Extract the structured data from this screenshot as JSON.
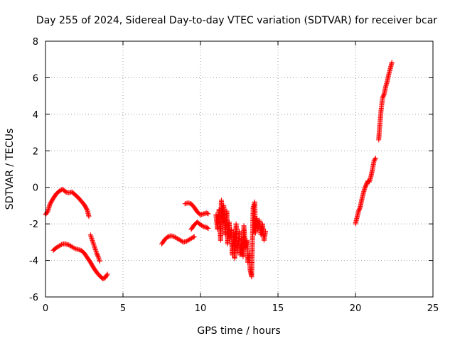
{
  "chart_data": {
    "type": "scatter",
    "title": "Day 255 of 2024, Sidereal Day-to-day VTEC variation (SDTVAR) for receiver bcar",
    "xlabel": "GPS time / hours",
    "ylabel": "SDTVAR / TECUs",
    "xlim": [
      0,
      25
    ],
    "ylim": [
      -6,
      8
    ],
    "xticks": [
      0,
      5,
      10,
      15,
      20,
      25
    ],
    "yticks": [
      -6,
      -4,
      -2,
      0,
      2,
      4,
      6,
      8
    ],
    "xtick_labels": [
      "0",
      "5",
      "10",
      "15",
      "20",
      "25"
    ],
    "ytick_labels": [
      "-6",
      "-4",
      "-2",
      "0",
      "2",
      "4",
      "6",
      "8"
    ],
    "grid": true,
    "legend": "none",
    "marker": "+",
    "color": "#ff0000",
    "series": [
      {
        "name": "track-1",
        "points": [
          [
            0.0,
            -1.5
          ],
          [
            0.15,
            -1.3
          ],
          [
            0.3,
            -0.9
          ],
          [
            0.5,
            -0.6
          ],
          [
            0.7,
            -0.35
          ],
          [
            0.9,
            -0.2
          ],
          [
            1.1,
            -0.1
          ],
          [
            1.3,
            -0.25
          ],
          [
            1.5,
            -0.3
          ],
          [
            1.7,
            -0.25
          ],
          [
            1.9,
            -0.4
          ],
          [
            2.1,
            -0.55
          ],
          [
            2.3,
            -0.75
          ],
          [
            2.5,
            -0.95
          ],
          [
            2.7,
            -1.25
          ],
          [
            2.8,
            -1.6
          ]
        ]
      },
      {
        "name": "track-2",
        "points": [
          [
            0.5,
            -3.45
          ],
          [
            0.7,
            -3.3
          ],
          [
            0.9,
            -3.2
          ],
          [
            1.1,
            -3.1
          ],
          [
            1.3,
            -3.1
          ],
          [
            1.5,
            -3.15
          ],
          [
            1.7,
            -3.25
          ],
          [
            1.9,
            -3.35
          ],
          [
            2.1,
            -3.4
          ],
          [
            2.3,
            -3.45
          ],
          [
            2.5,
            -3.6
          ],
          [
            2.7,
            -3.85
          ],
          [
            2.9,
            -4.1
          ],
          [
            3.1,
            -4.4
          ],
          [
            3.3,
            -4.65
          ],
          [
            3.5,
            -4.85
          ],
          [
            3.7,
            -5.0
          ],
          [
            3.85,
            -4.95
          ],
          [
            4.0,
            -4.75
          ]
        ]
      },
      {
        "name": "track-3",
        "points": [
          [
            2.9,
            -2.6
          ],
          [
            3.0,
            -2.85
          ],
          [
            3.1,
            -3.1
          ],
          [
            3.2,
            -3.35
          ],
          [
            3.3,
            -3.6
          ],
          [
            3.4,
            -3.8
          ],
          [
            3.5,
            -4.05
          ]
        ]
      },
      {
        "name": "track-4",
        "points": [
          [
            7.5,
            -3.1
          ],
          [
            7.7,
            -2.85
          ],
          [
            7.9,
            -2.7
          ],
          [
            8.1,
            -2.65
          ],
          [
            8.3,
            -2.7
          ],
          [
            8.5,
            -2.8
          ],
          [
            8.7,
            -2.9
          ],
          [
            8.9,
            -3.0
          ],
          [
            9.1,
            -2.95
          ],
          [
            9.3,
            -2.85
          ],
          [
            9.5,
            -2.75
          ],
          [
            9.6,
            -2.7
          ]
        ]
      },
      {
        "name": "track-5",
        "points": [
          [
            9.0,
            -0.9
          ],
          [
            9.2,
            -0.85
          ],
          [
            9.4,
            -0.9
          ],
          [
            9.6,
            -1.1
          ],
          [
            9.8,
            -1.35
          ],
          [
            10.0,
            -1.5
          ],
          [
            10.2,
            -1.45
          ],
          [
            10.4,
            -1.4
          ],
          [
            10.5,
            -1.45
          ]
        ]
      },
      {
        "name": "track-6",
        "points": [
          [
            9.4,
            -2.3
          ],
          [
            9.6,
            -2.05
          ],
          [
            9.8,
            -1.9
          ],
          [
            10.0,
            -2.05
          ],
          [
            10.2,
            -2.15
          ],
          [
            10.4,
            -2.2
          ],
          [
            10.5,
            -2.25
          ]
        ]
      },
      {
        "name": "track-7",
        "points": [
          [
            11.0,
            -1.5
          ],
          [
            11.1,
            -2.3
          ],
          [
            11.2,
            -1.2
          ],
          [
            11.3,
            -2.9
          ],
          [
            11.35,
            -0.7
          ],
          [
            11.45,
            -2.0
          ],
          [
            11.5,
            -1.0
          ],
          [
            11.6,
            -2.6
          ],
          [
            11.7,
            -1.3
          ],
          [
            11.75,
            -3.1
          ],
          [
            11.85,
            -1.9
          ],
          [
            11.9,
            -2.8
          ],
          [
            12.0,
            -2.3
          ],
          [
            12.05,
            -3.7
          ],
          [
            12.15,
            -2.5
          ],
          [
            12.2,
            -3.9
          ],
          [
            12.3,
            -2.0
          ],
          [
            12.4,
            -3.5
          ],
          [
            12.5,
            -2.4
          ],
          [
            12.55,
            -3.7
          ],
          [
            12.65,
            -2.8
          ],
          [
            12.75,
            -3.8
          ],
          [
            12.8,
            -2.1
          ],
          [
            12.9,
            -3.3
          ],
          [
            13.0,
            -2.9
          ],
          [
            13.05,
            -4.1
          ],
          [
            13.15,
            -3.6
          ],
          [
            13.2,
            -4.5
          ],
          [
            13.3,
            -4.9
          ],
          [
            13.4,
            -1.1
          ],
          [
            13.5,
            -0.8
          ],
          [
            13.55,
            -2.5
          ],
          [
            13.6,
            -1.7
          ],
          [
            13.7,
            -2.3
          ],
          [
            13.8,
            -1.8
          ],
          [
            13.9,
            -2.6
          ],
          [
            14.0,
            -2.0
          ],
          [
            14.1,
            -2.9
          ],
          [
            14.2,
            -2.4
          ]
        ]
      },
      {
        "name": "track-8",
        "points": [
          [
            20.0,
            -2.0
          ],
          [
            20.1,
            -1.65
          ],
          [
            20.2,
            -1.3
          ],
          [
            20.3,
            -1.1
          ],
          [
            20.4,
            -0.7
          ],
          [
            20.5,
            -0.35
          ],
          [
            20.6,
            -0.05
          ],
          [
            20.7,
            0.15
          ],
          [
            20.8,
            0.35
          ],
          [
            20.9,
            0.3
          ],
          [
            21.0,
            0.6
          ],
          [
            21.1,
            1.0
          ],
          [
            21.2,
            1.45
          ],
          [
            21.3,
            1.6
          ]
        ]
      },
      {
        "name": "track-9",
        "points": [
          [
            21.5,
            2.6
          ],
          [
            21.55,
            3.2
          ],
          [
            21.6,
            3.7
          ],
          [
            21.65,
            4.2
          ],
          [
            21.75,
            4.9
          ],
          [
            21.85,
            5.1
          ],
          [
            21.95,
            5.5
          ],
          [
            22.05,
            5.8
          ],
          [
            22.15,
            6.2
          ],
          [
            22.25,
            6.5
          ],
          [
            22.35,
            6.85
          ]
        ]
      }
    ]
  }
}
